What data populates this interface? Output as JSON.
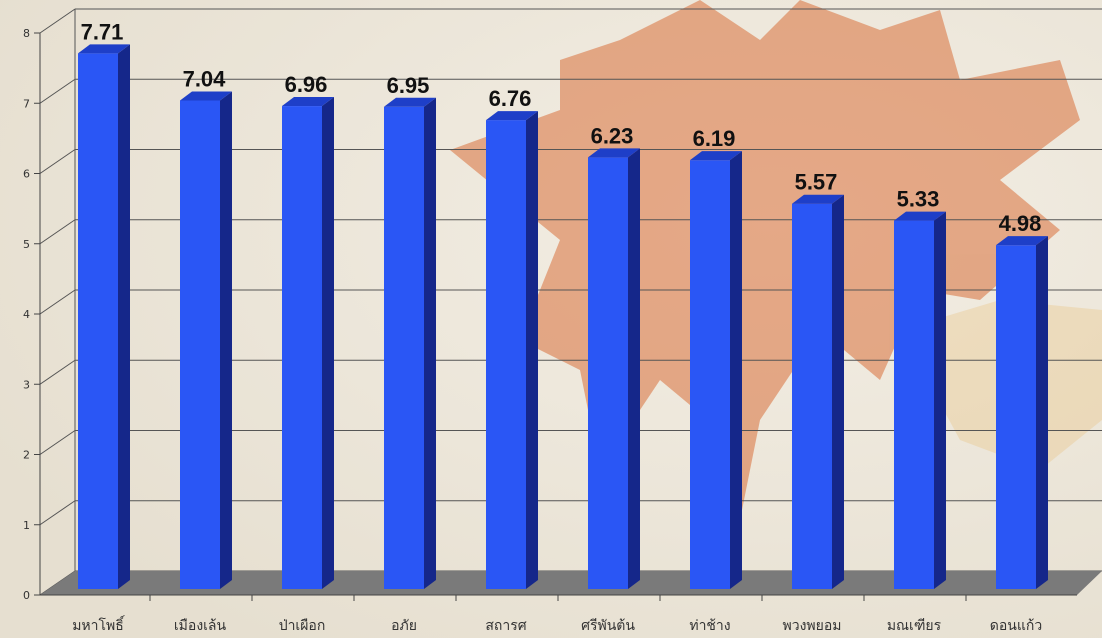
{
  "chart_data": {
    "type": "bar",
    "categories": [
      "มหาโพธิ์",
      "เมืองเล้น",
      "ป่าเผือก",
      "อภัย",
      "สถารศ",
      "ศรีพันต้น",
      "ท่าช้าง",
      "พวงพยอม",
      "มณเฑียร",
      "ดอนแก้ว"
    ],
    "values": [
      7.71,
      7.04,
      6.96,
      6.95,
      6.76,
      6.23,
      6.19,
      5.57,
      5.33,
      4.98
    ],
    "value_labels": [
      "7.71",
      "7.04",
      "6.96",
      "6.95",
      "6.76",
      "6.23",
      "6.19",
      "5.57",
      "5.33",
      "4.98"
    ],
    "yticks": [
      "0",
      "1",
      "2",
      "3",
      "4",
      "5",
      "6",
      "7",
      "8"
    ],
    "ylim": [
      0,
      8
    ],
    "grid": true,
    "style": "3d-bar",
    "colors": {
      "bar_front": "#2a56f5",
      "bar_side": "#15278a",
      "bar_top": "#1e3fc8",
      "floor": "#7a7a7a",
      "background": "#efe9dc",
      "decoration": "#d8703a"
    }
  }
}
